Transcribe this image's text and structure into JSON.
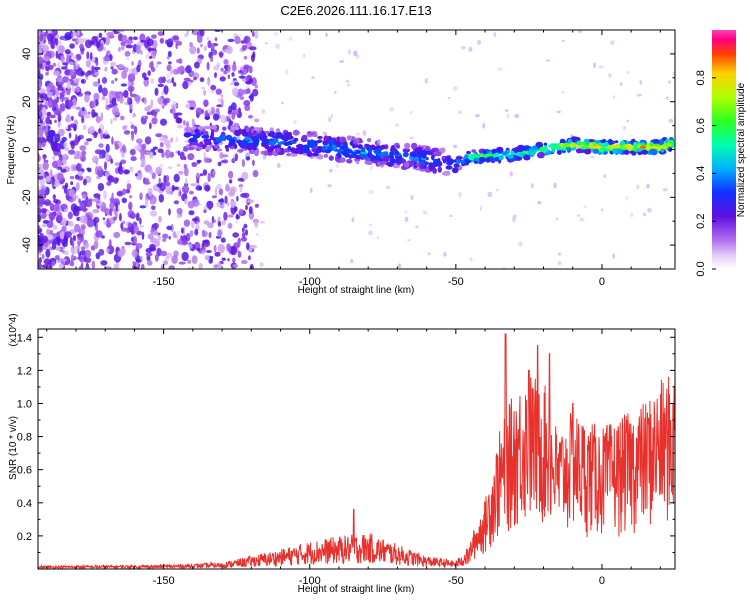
{
  "title": "C2E6.2026.111.16.17.E13",
  "chart_data": [
    {
      "type": "heatmap",
      "xlabel": "Height of straight line (km)",
      "ylabel": "Frequency (Hz)",
      "xlim": [
        -193,
        25
      ],
      "ylim": [
        -50,
        50
      ],
      "x_ticks": [
        -150,
        -100,
        -50,
        0
      ],
      "x_tick_labels": [
        "-150",
        "-100",
        "-50",
        "0"
      ],
      "y_ticks": [
        -40,
        -20,
        0,
        20,
        40
      ],
      "y_tick_labels": [
        "-40",
        "-20",
        "0",
        "20",
        "40"
      ],
      "colorbar": {
        "label": "Normalized spectral amplitude",
        "range": [
          0,
          1
        ],
        "ticks": [
          0.0,
          0.2,
          0.4,
          0.6,
          0.8
        ],
        "tick_labels": [
          "0.0",
          "0.2",
          "0.4",
          "0.6",
          "0.8"
        ]
      },
      "ridge": {
        "x": [
          -140,
          -120,
          -100,
          -80,
          -60,
          -50,
          -45,
          -30,
          -20,
          -10,
          0,
          10,
          20,
          25
        ],
        "freq": [
          5,
          4,
          2,
          -1,
          -4,
          -6,
          -3,
          -2,
          0,
          2,
          1,
          1,
          1,
          3
        ],
        "amplitude": [
          0.3,
          0.35,
          0.35,
          0.4,
          0.35,
          0.3,
          0.6,
          0.55,
          0.6,
          0.75,
          0.8,
          0.8,
          0.85,
          0.7
        ]
      },
      "grid": false
    },
    {
      "type": "line",
      "xlabel": "Height of straight line (km)",
      "ylabel": "SNR (10 * v/v)",
      "y_multiplier": "(x10^4)",
      "xlim": [
        -193,
        25
      ],
      "ylim": [
        0,
        1.45
      ],
      "x_ticks": [
        -150,
        -100,
        -50,
        0
      ],
      "x_tick_labels": [
        "-150",
        "-100",
        "-50",
        "0"
      ],
      "y_ticks": [
        0.2,
        0.4,
        0.6,
        0.8,
        1.0,
        1.2,
        1.4
      ],
      "y_tick_labels": [
        "0.2",
        "0.4",
        "0.6",
        "0.8",
        "1.0",
        "1.2",
        "1.4"
      ],
      "series": [
        {
          "color": "#e8302c",
          "envelope_x": [
            -193,
            -150,
            -130,
            -120,
            -110,
            -100,
            -90,
            -80,
            -70,
            -60,
            -50,
            -45,
            -40,
            -35,
            -30,
            -25,
            -20,
            -15,
            -10,
            -5,
            0,
            5,
            10,
            15,
            20,
            25
          ],
          "envelope_y": [
            0.02,
            0.025,
            0.04,
            0.08,
            0.12,
            0.17,
            0.2,
            0.22,
            0.15,
            0.08,
            0.05,
            0.15,
            0.35,
            0.7,
            0.9,
            1.0,
            0.95,
            0.7,
            0.8,
            0.75,
            0.72,
            0.75,
            0.8,
            0.85,
            0.95,
            1.0
          ],
          "peaks": [
            [
              -33,
              1.42
            ],
            [
              -22,
              1.35
            ],
            [
              -18,
              1.3
            ],
            [
              -85,
              0.36
            ],
            [
              -25,
              1.2
            ],
            [
              -10,
              1.0
            ]
          ]
        }
      ]
    }
  ]
}
